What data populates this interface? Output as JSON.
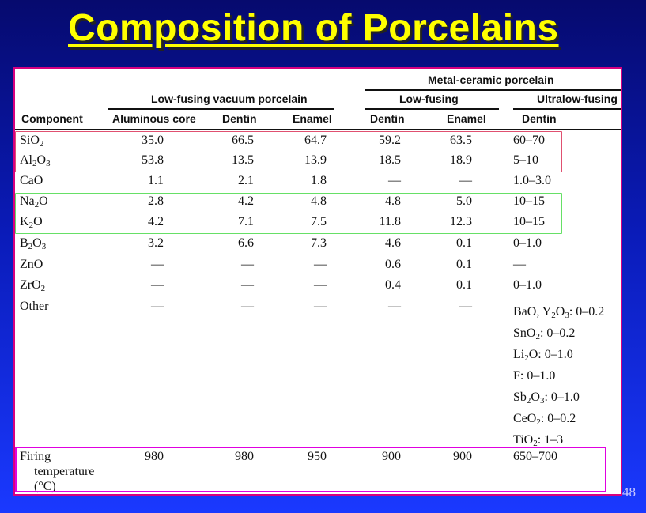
{
  "title": "Composition of Porcelains",
  "page_number": "48",
  "table": {
    "header": {
      "metal_ceramic": "Metal-ceramic porcelain",
      "low_fusing_vacuum": "Low-fusing vacuum porcelain",
      "low_fusing": "Low-fusing",
      "ultralow_fusing": "Ultralow-fusing",
      "columns": [
        "Component",
        "Aluminous core",
        "Dentin",
        "Enamel",
        "Dentin",
        "Enamel",
        "Dentin"
      ]
    },
    "rows": [
      {
        "component": [
          "SiO",
          "2",
          ""
        ],
        "values": [
          "35.0",
          "66.5",
          "64.7",
          "59.2",
          "63.5",
          "60–70"
        ]
      },
      {
        "component": [
          "Al",
          "2",
          "O",
          "3"
        ],
        "values": [
          "53.8",
          "13.5",
          "13.9",
          "18.5",
          "18.9",
          "5–10"
        ]
      },
      {
        "component": [
          "CaO"
        ],
        "values": [
          "1.1",
          "2.1",
          "1.8",
          "—",
          "—",
          "1.0–3.0"
        ]
      },
      {
        "component": [
          "Na",
          "2",
          "O"
        ],
        "values": [
          "2.8",
          "4.2",
          "4.8",
          "4.8",
          "5.0",
          "10–15"
        ]
      },
      {
        "component": [
          "K",
          "2",
          "O"
        ],
        "values": [
          "4.2",
          "7.1",
          "7.5",
          "11.8",
          "12.3",
          "10–15"
        ]
      },
      {
        "component": [
          "B",
          "2",
          "O",
          "3"
        ],
        "values": [
          "3.2",
          "6.6",
          "7.3",
          "4.6",
          "0.1",
          "0–1.0"
        ]
      },
      {
        "component": [
          "ZnO"
        ],
        "values": [
          "—",
          "—",
          "—",
          "0.6",
          "0.1",
          "—"
        ]
      },
      {
        "component": [
          "ZrO",
          "2"
        ],
        "values": [
          "—",
          "—",
          "—",
          "0.4",
          "0.1",
          "0–1.0"
        ]
      },
      {
        "component": [
          "Other"
        ],
        "values": [
          "—",
          "—",
          "—",
          "—",
          "—",
          ""
        ]
      }
    ],
    "other_ultralow": [
      [
        "BaO, Y",
        "2",
        "O",
        "3",
        ": 0–0.2"
      ],
      [
        "SnO",
        "2",
        ": 0–0.2"
      ],
      [
        "Li",
        "2",
        "O: 0–1.0"
      ],
      [
        "F: 0–1.0"
      ],
      [
        "Sb",
        "2",
        "O",
        "3",
        ": 0–1.0"
      ],
      [
        "CeO",
        "2",
        ": 0–0.2"
      ],
      [
        "TiO",
        "2",
        ": 1–3"
      ]
    ],
    "firing": {
      "label_line1": "Firing",
      "label_line2": "temperature",
      "label_line3": "(°C)",
      "values": [
        "980",
        "980",
        "950",
        "900",
        "900",
        "650–700"
      ]
    }
  },
  "colors": {
    "title": "#ffff00",
    "highlight_silica_alumina": "#e05070",
    "highlight_alkali": "#66e066",
    "highlight_firing": "#e000e0",
    "sheet_border": "#d60080"
  }
}
